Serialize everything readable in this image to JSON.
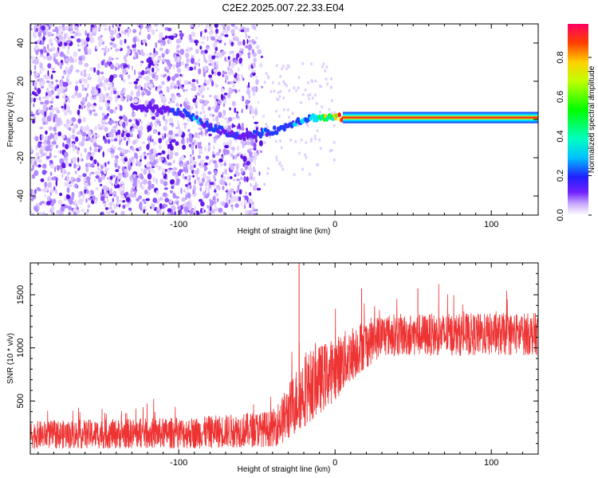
{
  "title": "C2E2.2025.007.22.33.E04",
  "chart_data": [
    {
      "type": "heatmap",
      "xlabel": "Height of straight line (km)",
      "ylabel": "Frequency (Hz)",
      "xlim": [
        -195,
        130
      ],
      "ylim": [
        -50,
        50
      ],
      "x_ticks": [
        -100,
        0,
        100
      ],
      "y_ticks": [
        -40,
        -20,
        0,
        20,
        40
      ],
      "colorbar": {
        "label": "Normalized spectral amplitude",
        "range": [
          0,
          1
        ],
        "ticks": [
          "0.0",
          "0.2",
          "0.4",
          "0.6",
          "0.8"
        ]
      },
      "ridge": [
        {
          "x": -130,
          "f": 6,
          "amp": 0.15
        },
        {
          "x": -110,
          "f": 5,
          "amp": 0.15
        },
        {
          "x": -95,
          "f": 3,
          "amp": 0.25
        },
        {
          "x": -80,
          "f": -4,
          "amp": 0.25
        },
        {
          "x": -60,
          "f": -9,
          "amp": 0.15
        },
        {
          "x": -45,
          "f": -7,
          "amp": 0.25
        },
        {
          "x": -35,
          "f": -5,
          "amp": 0.2
        },
        {
          "x": -25,
          "f": -1,
          "amp": 0.25
        },
        {
          "x": -15,
          "f": 1,
          "amp": 0.3
        },
        {
          "x": 0,
          "f": 1,
          "amp": 0.6
        },
        {
          "x": 5,
          "f": 1,
          "amp": 0.9
        },
        {
          "x": 130,
          "f": 1,
          "amp": 0.9
        }
      ]
    },
    {
      "type": "line",
      "xlabel": "Height of straight line (km)",
      "ylabel": "SNR (10 * v/v)",
      "xlim": [
        -195,
        130
      ],
      "ylim": [
        0,
        1800
      ],
      "x_ticks": [
        -100,
        0,
        100
      ],
      "y_ticks": [
        500,
        1000,
        1500
      ],
      "color": "#ee3333",
      "series": [
        {
          "name": "SNR",
          "segments": [
            {
              "x": -195,
              "mean": 180,
              "spread": 130
            },
            {
              "x": -90,
              "mean": 200,
              "spread": 150
            },
            {
              "x": -40,
              "mean": 240,
              "spread": 170
            },
            {
              "x": -32,
              "mean": 350,
              "spread": 250
            },
            {
              "x": -20,
              "mean": 600,
              "spread": 350
            },
            {
              "x": 0,
              "mean": 800,
              "spread": 300
            },
            {
              "x": 15,
              "mean": 1000,
              "spread": 250
            },
            {
              "x": 30,
              "mean": 1120,
              "spread": 200
            },
            {
              "x": 130,
              "mean": 1130,
              "spread": 200
            }
          ],
          "peaks": [
            {
              "x": -23,
              "y": 1800
            },
            {
              "x": 17,
              "y": 1560
            },
            {
              "x": 53,
              "y": 1560
            }
          ]
        }
      ]
    }
  ]
}
